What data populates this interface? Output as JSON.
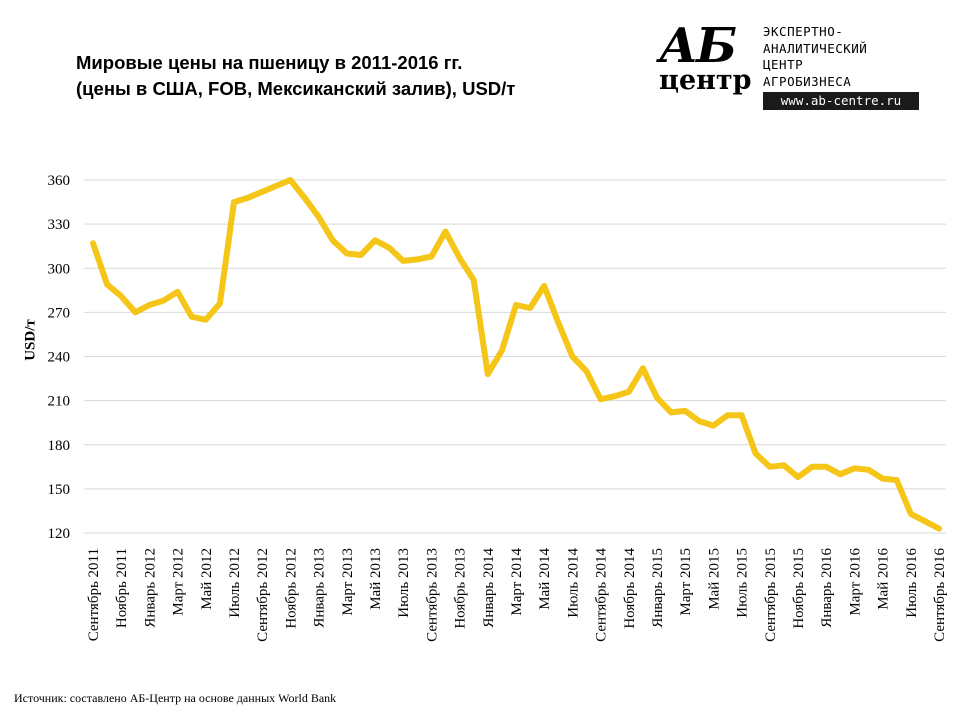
{
  "header": {
    "title_line1": "Мировые цены на пшеницу в 2011-2016 гг.",
    "title_line2": "(цены в США, FOB, Мексиканский залив), USD/т"
  },
  "logo": {
    "mark_top": "АБ",
    "mark_bottom": "центр",
    "line1": "ЭКСПЕРТНО-",
    "line2": "АНАЛИТИЧЕСКИЙ",
    "line3": "ЦЕНТР",
    "line4": "АГРОБИЗНЕСА",
    "url": "www.ab-centre.ru"
  },
  "source_note": "Источник: составлено АБ-Центр на основе данных World Bank",
  "chart_data": {
    "type": "line",
    "title": "Мировые цены на пшеницу в 2011-2016 гг. (цены в США, FOB, Мексиканский залив), USD/т",
    "xlabel": "",
    "ylabel": "USD/т",
    "ylim": [
      120,
      360
    ],
    "yticks": [
      120,
      150,
      180,
      210,
      240,
      270,
      300,
      330,
      360
    ],
    "grid": "horizontal",
    "line_color": "#f5c518",
    "x": [
      "Сентябрь 2011",
      "Октябрь 2011",
      "Ноябрь 2011",
      "Декабрь 2011",
      "Январь 2012",
      "Февраль 2012",
      "Март 2012",
      "Апрель 2012",
      "Май 2012",
      "Июнь 2012",
      "Июль 2012",
      "Август 2012",
      "Сентябрь 2012",
      "Октябрь 2012",
      "Ноябрь 2012",
      "Декабрь 2012",
      "Январь 2013",
      "Февраль 2013",
      "Март 2013",
      "Апрель 2013",
      "Май 2013",
      "Июнь 2013",
      "Июль 2013",
      "Август 2013",
      "Сентябрь 2013",
      "Октябрь 2013",
      "Ноябрь 2013",
      "Декабрь 2013",
      "Январь 2014",
      "Февраль 2014",
      "Март 2014",
      "Апрель 2014",
      "Май 2014",
      "Июнь 2014",
      "Июль 2014",
      "Август 2014",
      "Сентябрь 2014",
      "Октябрь 2014",
      "Ноябрь 2014",
      "Декабрь 2014",
      "Январь 2015",
      "Февраль 2015",
      "Март 2015",
      "Апрель 2015",
      "Май 2015",
      "Июнь 2015",
      "Июль 2015",
      "Август 2015",
      "Сентябрь 2015",
      "Октябрь 2015",
      "Ноябрь 2015",
      "Декабрь 2015",
      "Январь 2016",
      "Февраль 2016",
      "Март 2016",
      "Апрель 2016",
      "Май 2016",
      "Июнь 2016",
      "Июль 2016",
      "Август 2016",
      "Сентябрь 2016"
    ],
    "tick_labels": [
      "Сентябрь 2011",
      "Ноябрь 2011",
      "Январь 2012",
      "Март 2012",
      "Май 2012",
      "Июль 2012",
      "Сентябрь 2012",
      "Ноябрь 2012",
      "Январь 2013",
      "Март 2013",
      "Май 2013",
      "Июль 2013",
      "Сентябрь 2013",
      "Ноябрь 2013",
      "Январь 2014",
      "Март 2014",
      "Май 2014",
      "Июль 2014",
      "Сентябрь 2014",
      "Ноябрь 2014",
      "Январь 2015",
      "Март 2015",
      "Май 2015",
      "Июль 2015",
      "Сентябрь 2015",
      "Ноябрь 2015",
      "Январь 2016",
      "Март 2016",
      "Май 2016",
      "Июль 2016",
      "Сентябрь 2016"
    ],
    "series": [
      {
        "values": [
          317,
          289,
          281,
          270,
          275,
          278,
          284,
          267,
          265,
          276,
          345,
          348,
          352,
          356,
          360,
          348,
          335,
          319,
          310,
          309,
          319,
          314,
          305,
          306,
          308,
          325,
          307,
          292,
          228,
          244,
          275,
          273,
          288,
          263,
          240,
          230,
          211,
          213,
          216,
          232,
          212,
          202,
          203,
          196,
          193,
          200,
          200,
          174,
          165,
          166,
          158,
          165,
          165,
          160,
          164,
          163,
          157,
          156,
          133,
          128,
          123
        ]
      }
    ]
  }
}
